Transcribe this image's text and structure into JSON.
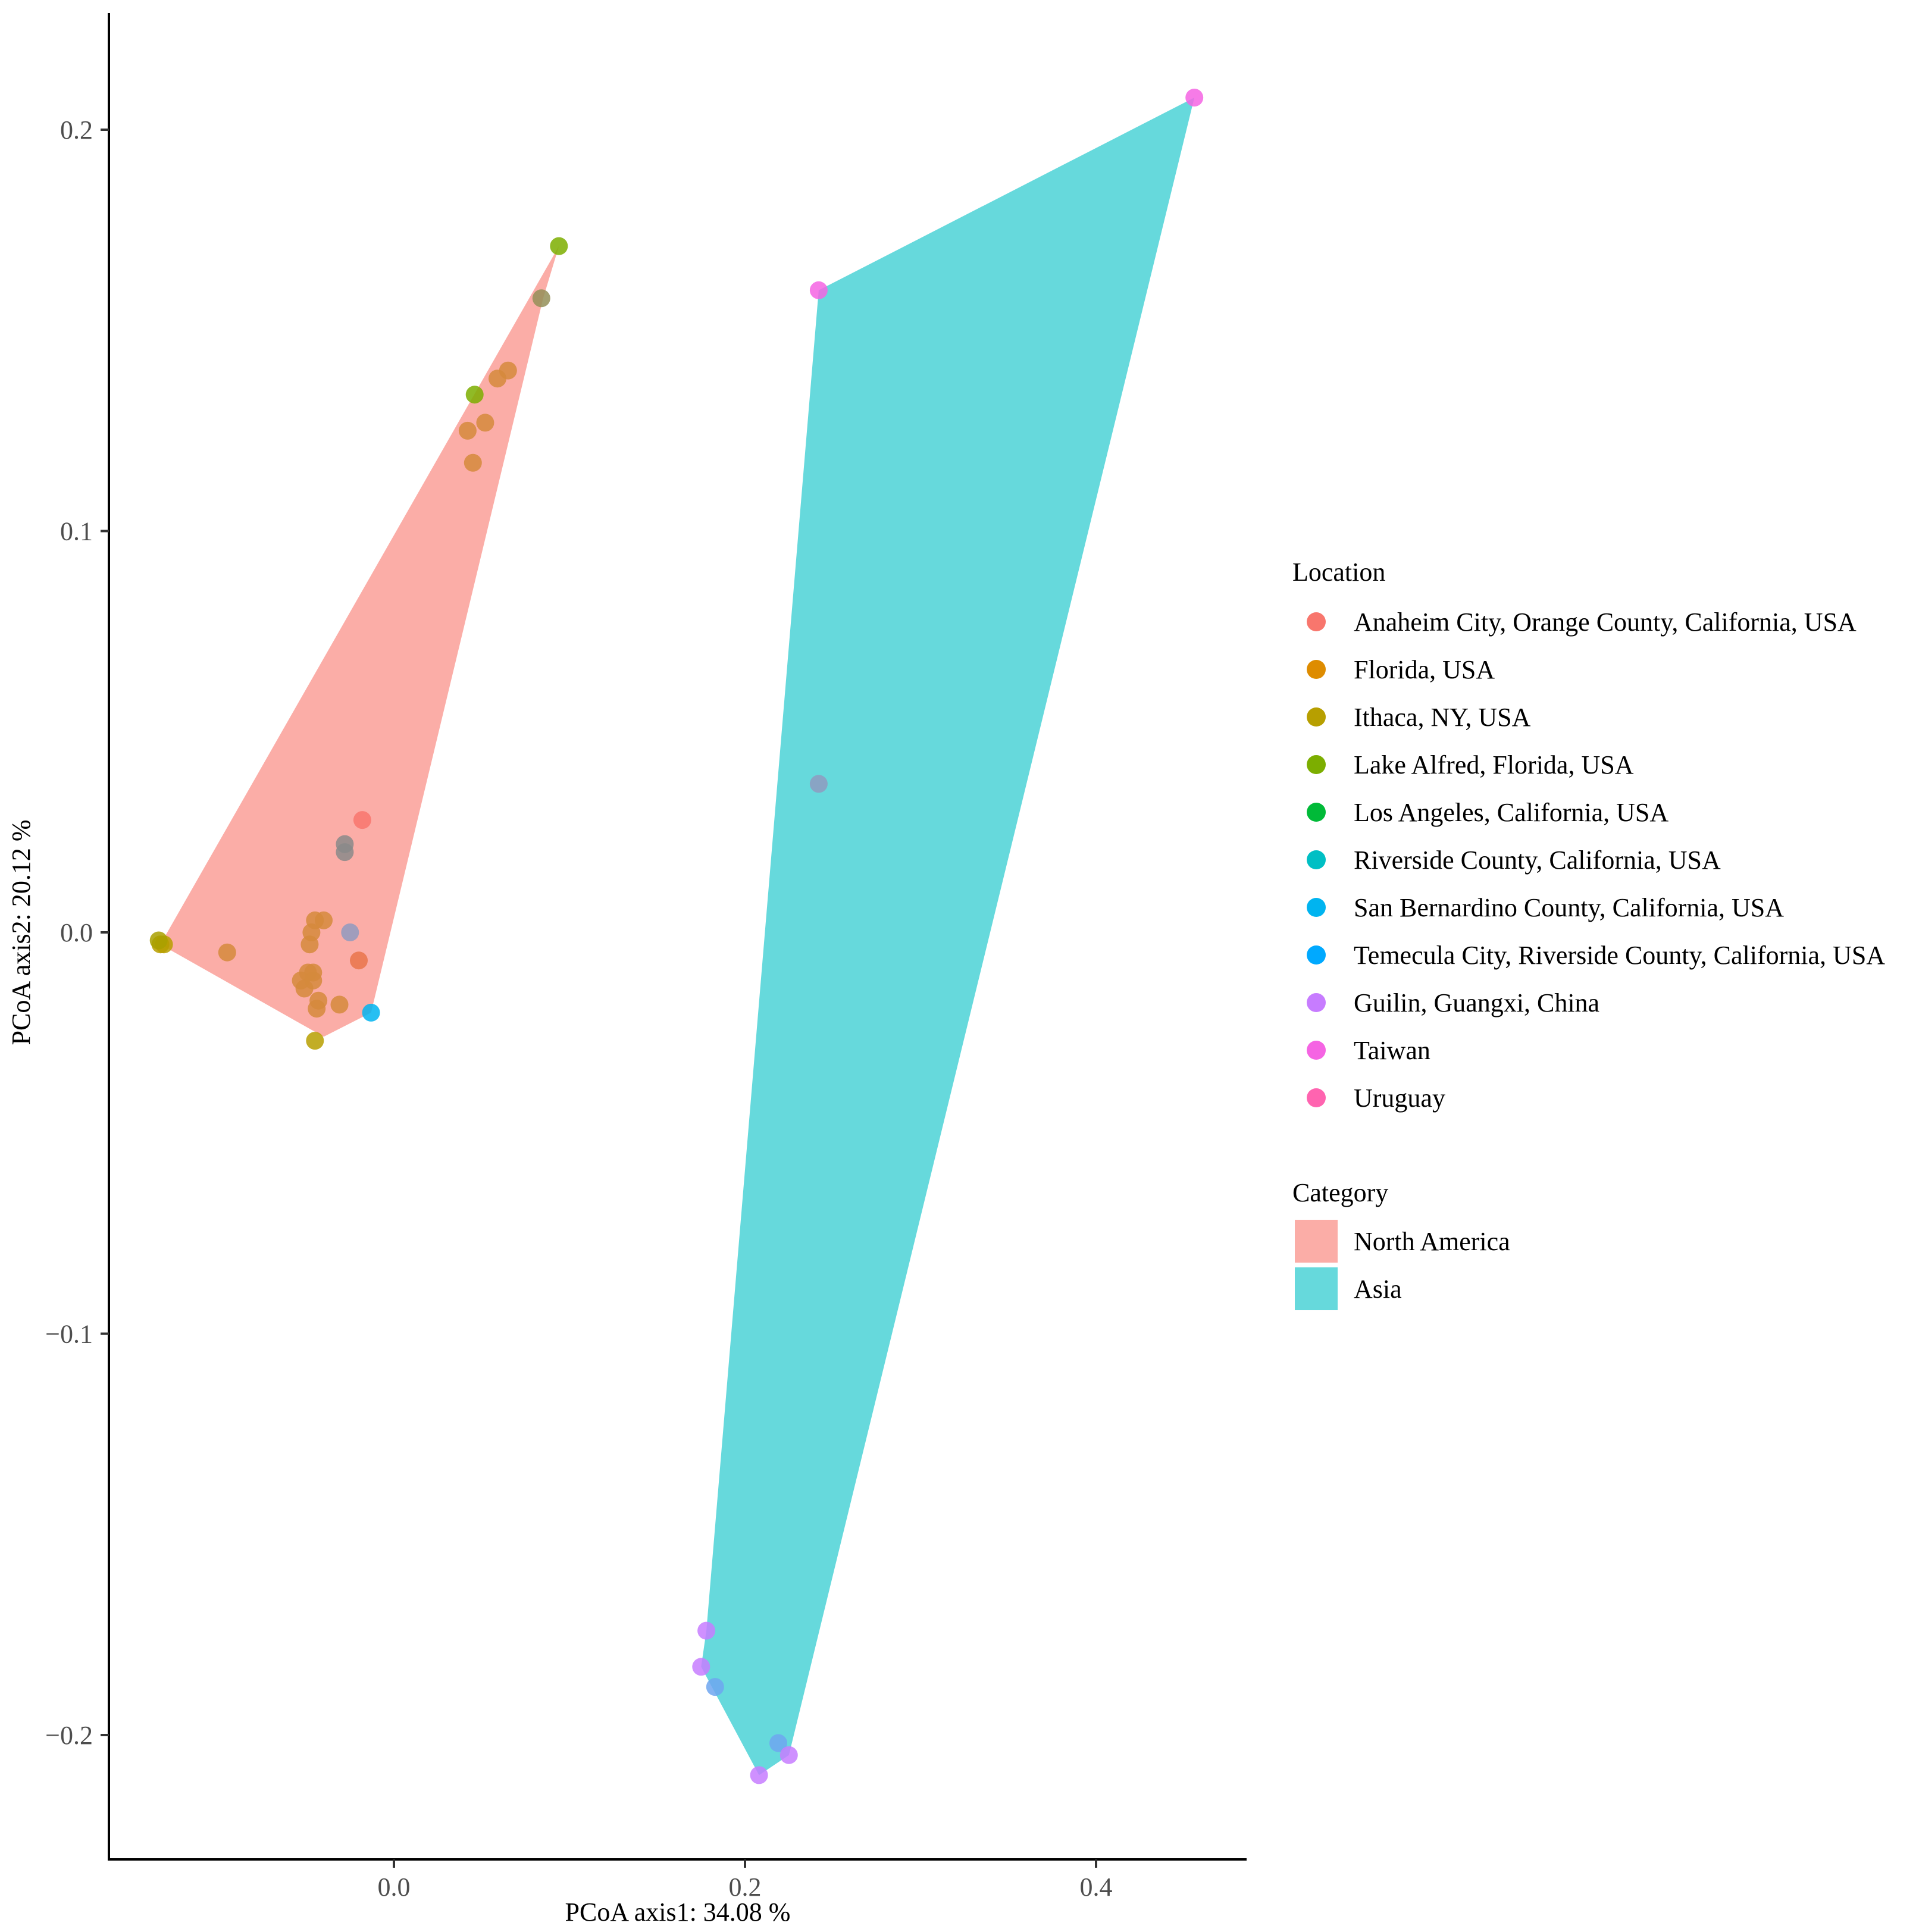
{
  "chart_data": {
    "type": "scatter",
    "title": "",
    "xlabel": "PCoA axis1:  34.08 %",
    "ylabel": "PCoA axis2:  20.12 %",
    "xlim": [
      -0.17,
      0.485
    ],
    "ylim": [
      -0.23,
      0.23
    ],
    "x_ticks": [
      0.0,
      0.2,
      0.4
    ],
    "x_tick_labels": [
      "0.0",
      "0.2",
      "0.4"
    ],
    "y_ticks": [
      0.2,
      0.1,
      0.0,
      -0.1,
      -0.2
    ],
    "y_tick_labels": [
      "0.2",
      "0.1",
      "0.0",
      "−0.1",
      "−0.2"
    ],
    "grid": false,
    "legend_position": "right",
    "location_legend": {
      "title": "Location",
      "items": [
        {
          "label": "Anaheim City, Orange County, California, USA",
          "color": "#F8766D"
        },
        {
          "label": "Florida, USA",
          "color": "#DE8C00"
        },
        {
          "label": "Ithaca, NY, USA",
          "color": "#B79F00"
        },
        {
          "label": "Lake Alfred, Florida, USA",
          "color": "#7CAE00"
        },
        {
          "label": "Los Angeles, California, USA",
          "color": "#00BA38"
        },
        {
          "label": "Riverside County, California, USA",
          "color": "#00BFC4"
        },
        {
          "label": "San Bernardino County, California, USA",
          "color": "#00B4F0"
        },
        {
          "label": "Temecula City, Riverside County, California, USA",
          "color": "#00A9FF"
        },
        {
          "label": "Guilin, Guangxi, China",
          "color": "#C77CFF"
        },
        {
          "label": "Taiwan",
          "color": "#F564E3"
        },
        {
          "label": "Uruguay",
          "color": "#FF64B0"
        }
      ]
    },
    "category_legend": {
      "title": "Category",
      "items": [
        {
          "label": "North America",
          "color": "#F8766D"
        },
        {
          "label": "Asia",
          "color": "#00BFC4"
        }
      ]
    },
    "hulls": [
      {
        "category": "North America",
        "color": "#F8766D",
        "points": [
          [
            -0.133,
            -0.003
          ],
          [
            -0.04,
            -0.026
          ],
          [
            -0.013,
            -0.02
          ],
          [
            0.085,
            0.158
          ],
          [
            0.094,
            0.171
          ],
          [
            -0.133,
            -0.003
          ]
        ]
      },
      {
        "category": "Asia",
        "color": "#00BFC4",
        "points": [
          [
            0.178,
            -0.174
          ],
          [
            0.242,
            0.16
          ],
          [
            0.456,
            0.208
          ],
          [
            0.225,
            -0.205
          ],
          [
            0.208,
            -0.21
          ],
          [
            0.175,
            -0.183
          ],
          [
            0.178,
            -0.174
          ]
        ]
      }
    ],
    "points": [
      {
        "x": 0.456,
        "y": 0.208,
        "color": "#F564E3"
      },
      {
        "x": 0.242,
        "y": 0.16,
        "color": "#F564E3"
      },
      {
        "x": 0.242,
        "y": 0.037,
        "color": "#8F9ABF"
      },
      {
        "x": 0.178,
        "y": -0.174,
        "color": "#C77CFF"
      },
      {
        "x": 0.175,
        "y": -0.183,
        "color": "#C77CFF"
      },
      {
        "x": 0.183,
        "y": -0.188,
        "color": "#6FA6F0"
      },
      {
        "x": 0.219,
        "y": -0.202,
        "color": "#6FA6F0"
      },
      {
        "x": 0.225,
        "y": -0.205,
        "color": "#C77CFF"
      },
      {
        "x": 0.208,
        "y": -0.21,
        "color": "#C77CFF"
      },
      {
        "x": 0.094,
        "y": 0.171,
        "color": "#7CAE00"
      },
      {
        "x": 0.084,
        "y": 0.158,
        "color": "#948F58"
      },
      {
        "x": 0.065,
        "y": 0.14,
        "color": "#D58A3C"
      },
      {
        "x": 0.059,
        "y": 0.138,
        "color": "#D58A3C"
      },
      {
        "x": 0.046,
        "y": 0.134,
        "color": "#7CAE00"
      },
      {
        "x": 0.052,
        "y": 0.127,
        "color": "#D58A3C"
      },
      {
        "x": 0.042,
        "y": 0.125,
        "color": "#D58A3C"
      },
      {
        "x": 0.045,
        "y": 0.117,
        "color": "#D58A3C"
      },
      {
        "x": -0.018,
        "y": 0.028,
        "color": "#F8766D"
      },
      {
        "x": -0.028,
        "y": 0.022,
        "color": "#8A8A8A"
      },
      {
        "x": -0.028,
        "y": 0.02,
        "color": "#8A8A8A"
      },
      {
        "x": -0.025,
        "y": 0.0,
        "color": "#8F9ABF"
      },
      {
        "x": -0.045,
        "y": 0.003,
        "color": "#D58A3C"
      },
      {
        "x": -0.04,
        "y": 0.003,
        "color": "#D58A3C"
      },
      {
        "x": -0.047,
        "y": 0.0,
        "color": "#D58A3C"
      },
      {
        "x": -0.048,
        "y": -0.003,
        "color": "#D58A3C"
      },
      {
        "x": -0.02,
        "y": -0.007,
        "color": "#E9744A"
      },
      {
        "x": -0.049,
        "y": -0.01,
        "color": "#D58A3C"
      },
      {
        "x": -0.046,
        "y": -0.01,
        "color": "#D58A3C"
      },
      {
        "x": -0.053,
        "y": -0.012,
        "color": "#D58A3C"
      },
      {
        "x": -0.046,
        "y": -0.012,
        "color": "#D58A3C"
      },
      {
        "x": -0.051,
        "y": -0.014,
        "color": "#D58A3C"
      },
      {
        "x": -0.043,
        "y": -0.017,
        "color": "#D58A3C"
      },
      {
        "x": -0.031,
        "y": -0.018,
        "color": "#D58A3C"
      },
      {
        "x": -0.044,
        "y": -0.019,
        "color": "#D58A3C"
      },
      {
        "x": -0.013,
        "y": -0.02,
        "color": "#00B4F0"
      },
      {
        "x": -0.045,
        "y": -0.027,
        "color": "#B79F00"
      },
      {
        "x": -0.095,
        "y": -0.005,
        "color": "#D58A3C"
      },
      {
        "x": -0.133,
        "y": -0.003,
        "color": "#B79F00"
      },
      {
        "x": -0.131,
        "y": -0.003,
        "color": "#B79F00"
      },
      {
        "x": -0.134,
        "y": -0.002,
        "color": "#A9A000"
      }
    ]
  }
}
